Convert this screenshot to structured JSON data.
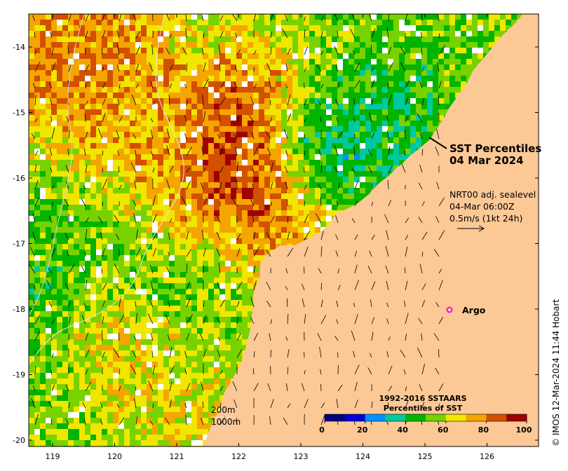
{
  "title": {
    "line1": "SST Percentiles",
    "line2": "04 Mar 2024"
  },
  "current_note": {
    "line1": "NRT00 adj. sealevel",
    "line2": "04-Mar 06:00Z",
    "line3": "0.5m/s (1kt 24h)"
  },
  "argo_label": "Argo",
  "depth_labels": {
    "c200": "200m",
    "c1000": "1000m"
  },
  "colorbar": {
    "title1": "1992-2016 SSTAARS",
    "title2": "Percentiles of SST",
    "ticks": [
      "0",
      "20",
      "40",
      "60",
      "80",
      "100"
    ],
    "colors": [
      "#00007f",
      "#0000d8",
      "#0090ff",
      "#00c8a0",
      "#00b400",
      "#78d200",
      "#f0e600",
      "#f5a500",
      "#d25000",
      "#a00000"
    ]
  },
  "credit": "© IMOS 12-Mar-2024 11:44 Hobart",
  "axes": {
    "x_ticks": [
      "119",
      "120",
      "121",
      "122",
      "123",
      "124",
      "125",
      "126"
    ],
    "y_ticks": [
      "-14",
      "-15",
      "-16",
      "-17",
      "-18",
      "-19",
      "-20"
    ]
  },
  "colors": {
    "land": "#fcc896",
    "no_data": "#ffffff",
    "argo_marker": "#ff00ff"
  }
}
